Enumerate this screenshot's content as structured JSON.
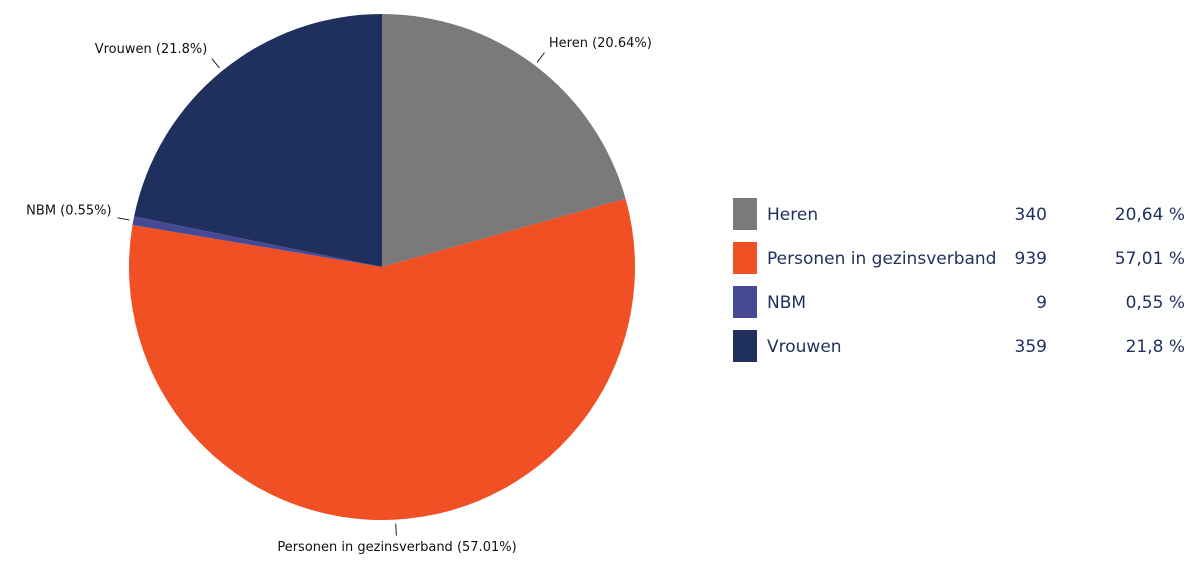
{
  "chart_data": {
    "type": "pie",
    "categories": [
      "Heren",
      "Personen in gezinsverband",
      "NBM",
      "Vrouwen"
    ],
    "values": [
      340,
      939,
      9,
      359
    ],
    "percents": [
      20.64,
      57.01,
      0.55,
      21.8
    ],
    "percent_labels": [
      "20,64 %",
      "57,01 %",
      "0,55 %",
      "21,8 %"
    ],
    "slice_labels": [
      "Heren (20.64%)",
      "Personen in gezinsverband (57.01%)",
      "NBM (0.55%)",
      "Vrouwen (21.8%)"
    ],
    "colors": [
      "#7a7a7a",
      "#f05024",
      "#464a94",
      "#1f305e"
    ],
    "legend": "right"
  }
}
